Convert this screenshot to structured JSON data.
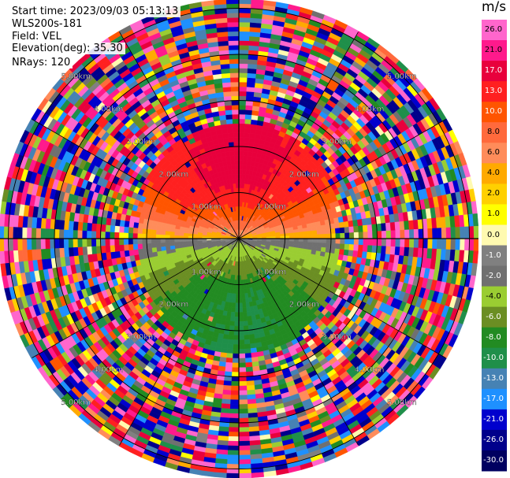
{
  "header": {
    "start_time": "Start time: 2023/09/03 05:13:13",
    "instrument": "WLS200s-181",
    "field": "Field: VEL",
    "elevation": "Elevation(deg): 35.30",
    "nrays": "NRays: 120"
  },
  "chart_data": {
    "type": "ppi",
    "field": "VEL",
    "units": "m/s",
    "n_rays": 120,
    "elevation_deg": 35.3,
    "range_rings_km": [
      "1.00km",
      "2.00km",
      "3.00km",
      "4.00km",
      "5.00km"
    ],
    "max_range_km": 5.2,
    "colorbar": {
      "unit": "m/s",
      "ticks": [
        26.0,
        21.0,
        17.0,
        13.0,
        10.0,
        8.0,
        6.0,
        4.0,
        2.0,
        1.0,
        0.0,
        -1.0,
        -2.0,
        -4.0,
        -6.0,
        -8.0,
        -10.0,
        -13.0,
        -17.0,
        -21.0,
        -26.0,
        -30.0
      ],
      "tick_labels": [
        "26.0",
        "21.0",
        "17.0",
        "13.0",
        "10.0",
        "8.0",
        "6.0",
        "4.0",
        "2.0",
        "1.0",
        "0.0",
        "-1.0",
        "-2.0",
        "-4.0",
        "-6.0",
        "-8.0",
        "-10.0",
        "-13.0",
        "-17.0",
        "-21.0",
        "-26.0",
        "-30.0"
      ],
      "colors": [
        "#ff66cc",
        "#ff1a8c",
        "#e8003c",
        "#ff2020",
        "#ff5500",
        "#ff6a3c",
        "#ff8c5a",
        "#ffaa00",
        "#ffd000",
        "#ffff00",
        "#fffab0",
        "#808080",
        "#707070",
        "#9acd32",
        "#6b8e23",
        "#228b22",
        "#1f8f4a",
        "#4682b4",
        "#1e90ff",
        "#0000cd",
        "#00008b",
        "#000060"
      ]
    },
    "pattern": {
      "positive_half": "upper (north), 0 to 15 m/s in the inner 2.3 km",
      "negative_half": "lower (south), -10 to 0 m/s in the inner 2.3 km",
      "outer_ranges": "noise beyond about 2.3 km"
    }
  }
}
